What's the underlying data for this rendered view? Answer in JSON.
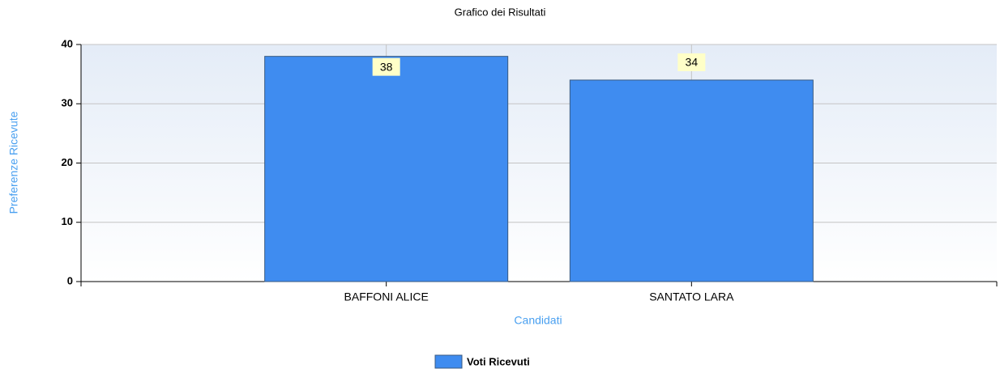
{
  "chart_data": {
    "type": "bar",
    "title": "Grafico dei Risultati",
    "x_label": "Candidati",
    "y_label": "Preferenze Ricevute",
    "categories": [
      "BAFFONI ALICE",
      "SANTATO LARA"
    ],
    "series": [
      {
        "name": "Voti Ricevuti",
        "color": "#3f8cf0",
        "values": [
          38,
          34
        ]
      }
    ],
    "ylim": [
      0,
      40
    ],
    "yticks": [
      0,
      10,
      20,
      30,
      40
    ],
    "grid": true,
    "legend": "bottom"
  }
}
